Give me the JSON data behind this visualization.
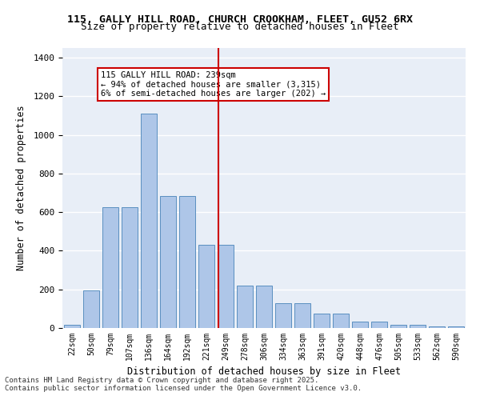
{
  "title_line1": "115, GALLY HILL ROAD, CHURCH CROOKHAM, FLEET, GU52 6RX",
  "title_line2": "Size of property relative to detached houses in Fleet",
  "xlabel": "Distribution of detached houses by size in Fleet",
  "ylabel": "Number of detached properties",
  "bar_labels": [
    "22sqm",
    "50sqm",
    "79sqm",
    "107sqm",
    "136sqm",
    "164sqm",
    "192sqm",
    "221sqm",
    "249sqm",
    "278sqm",
    "306sqm",
    "334sqm",
    "363sqm",
    "391sqm",
    "420sqm",
    "448sqm",
    "476sqm",
    "505sqm",
    "533sqm",
    "562sqm",
    "590sqm"
  ],
  "bar_values": [
    15,
    195,
    625,
    625,
    1110,
    685,
    685,
    430,
    430,
    220,
    220,
    130,
    130,
    75,
    75,
    32,
    32,
    18,
    18,
    8,
    8
  ],
  "bar_color": "#aec6e8",
  "bar_edgecolor": "#5a8fc0",
  "background_color": "#e8eef7",
  "vline_color": "#cc0000",
  "annotation_text": "115 GALLY HILL ROAD: 239sqm\n← 94% of detached houses are smaller (3,315)\n6% of semi-detached houses are larger (202) →",
  "annotation_box_color": "#cc0000",
  "ylim": [
    0,
    1450
  ],
  "yticks": [
    0,
    200,
    400,
    600,
    800,
    1000,
    1200,
    1400
  ],
  "footer": "Contains HM Land Registry data © Crown copyright and database right 2025.\nContains public sector information licensed under the Open Government Licence v3.0."
}
